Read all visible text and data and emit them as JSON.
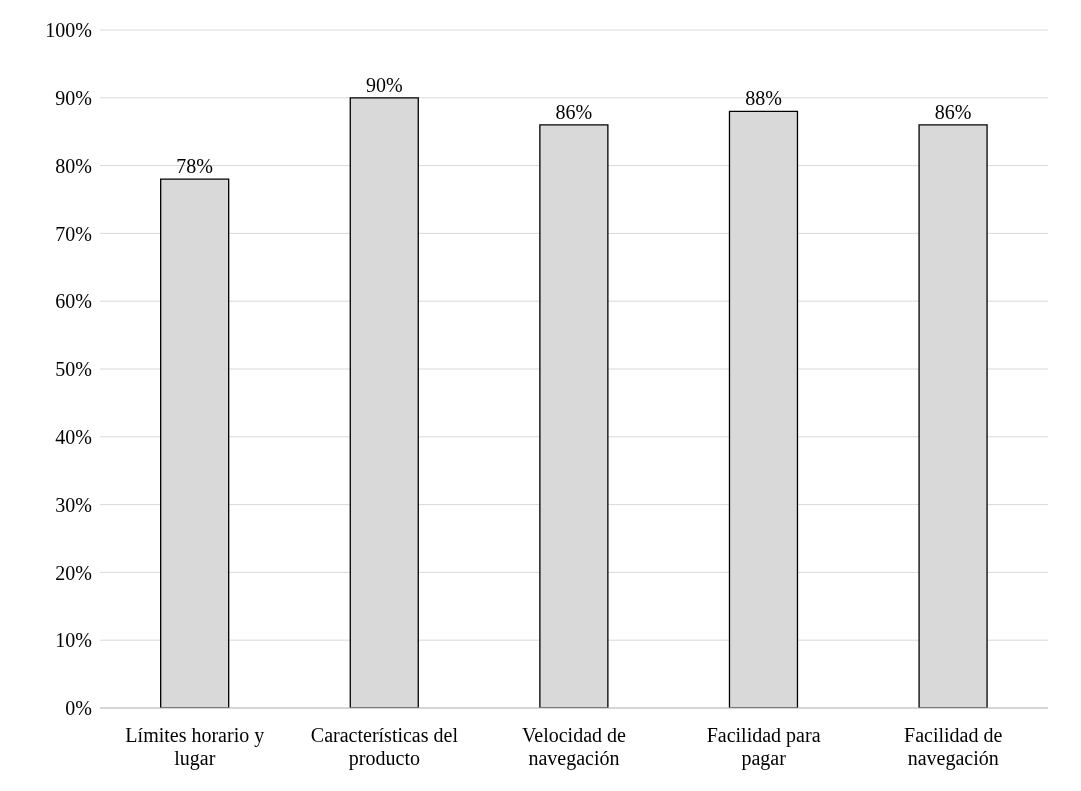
{
  "chart_data": {
    "type": "bar",
    "categories": [
      "Límites horario y lugar",
      "Características del producto",
      "Velocidad de navegación",
      "Facilidad para pagar",
      "Facilidad de navegación"
    ],
    "values": [
      78,
      90,
      86,
      88,
      86
    ],
    "value_labels": [
      "78%",
      "90%",
      "86%",
      "88%",
      "86%"
    ],
    "color": "#d9d9d9",
    "ylim": [
      0,
      100
    ],
    "yticks": [
      {
        "value": 0,
        "label": "0%"
      },
      {
        "value": 10,
        "label": "10%"
      },
      {
        "value": 20,
        "label": "20%"
      },
      {
        "value": 30,
        "label": "30%"
      },
      {
        "value": 40,
        "label": "40%"
      },
      {
        "value": 50,
        "label": "50%"
      },
      {
        "value": 60,
        "label": "60%"
      },
      {
        "value": 70,
        "label": "70%"
      },
      {
        "value": 80,
        "label": "80%"
      },
      {
        "value": 90,
        "label": "90%"
      },
      {
        "value": 100,
        "label": "100%"
      }
    ],
    "grid": "y"
  }
}
